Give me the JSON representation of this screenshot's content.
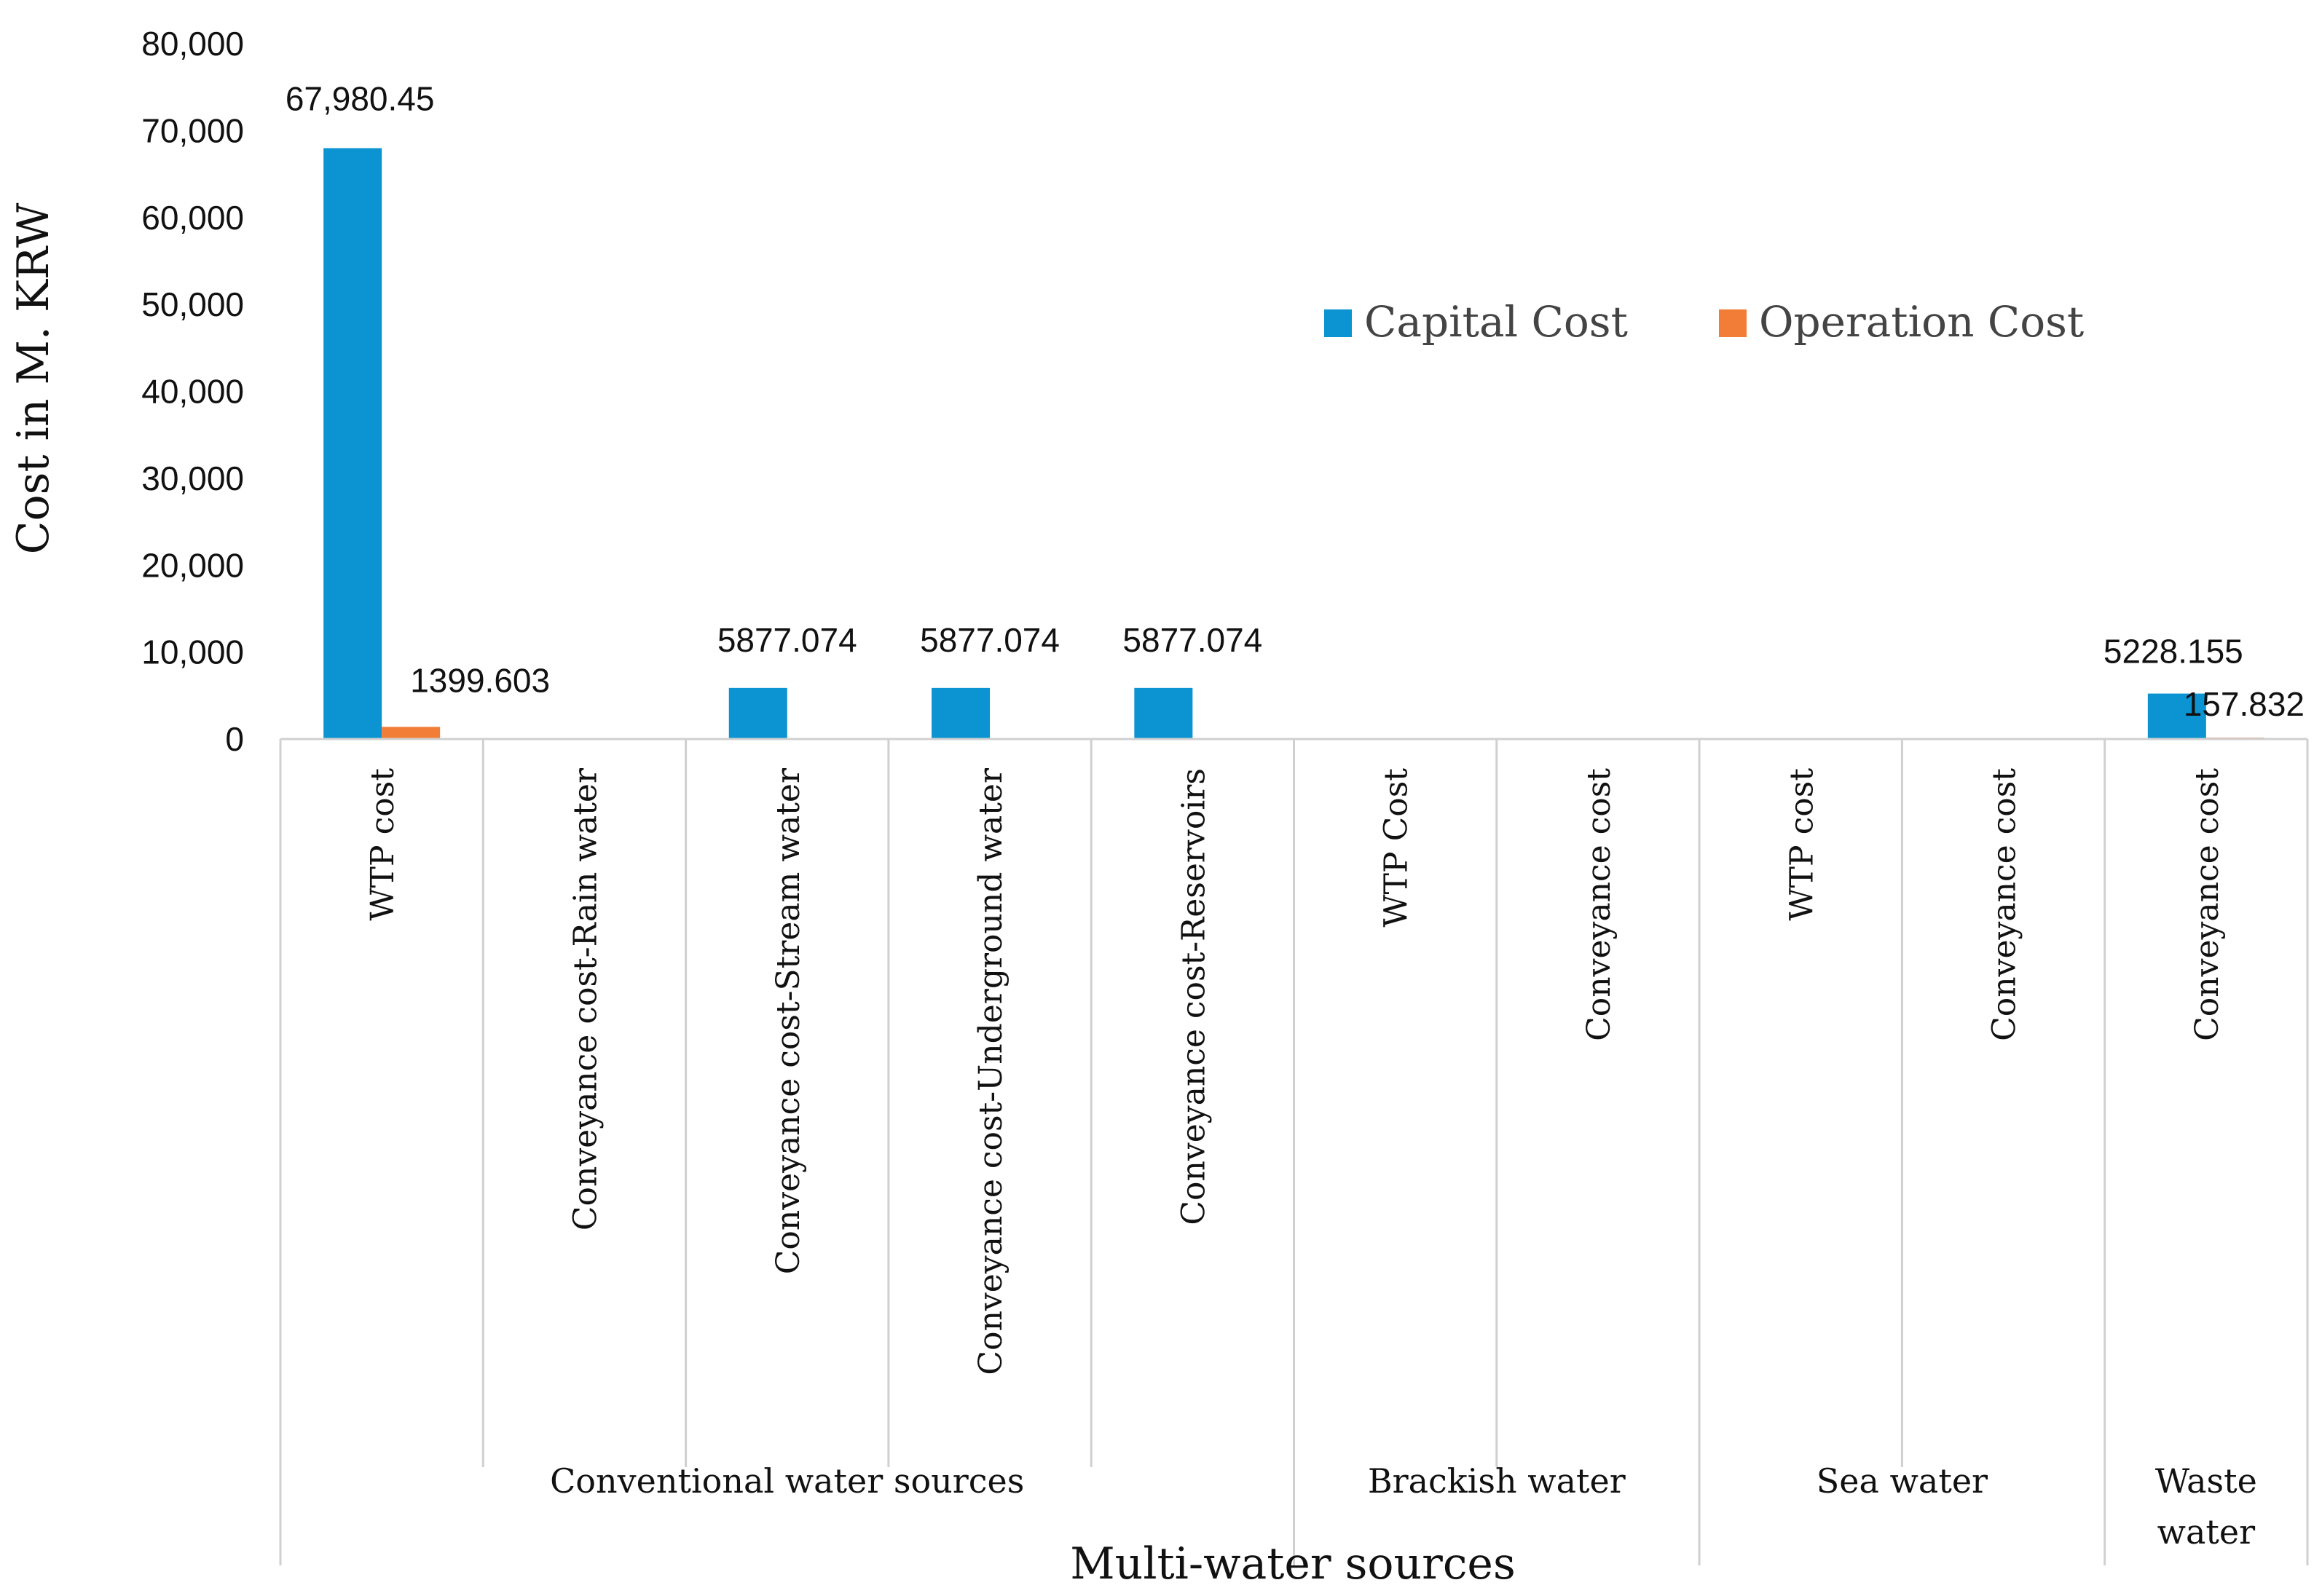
{
  "chart_data": {
    "type": "bar",
    "title": "",
    "xlabel": "Multi-water sources",
    "ylabel": "Cost in M. KRW",
    "ylim": [
      0,
      80000
    ],
    "yticks": [
      0,
      10000,
      20000,
      30000,
      40000,
      50000,
      60000,
      70000,
      80000
    ],
    "ytick_labels": [
      "0",
      "10,000",
      "20,000",
      "30,000",
      "40,000",
      "50,000",
      "60,000",
      "70,000",
      "80,000"
    ],
    "grid": false,
    "legend_position": "top-right",
    "categories": [
      "WTP cost",
      "Conveyance cost-Rain water",
      "Conveyance cost-Stream water",
      "Conveyance cost-Underground water",
      "Conveyance cost-Reservoirs",
      "WTP Cost",
      "Conveyance cost",
      "WTP cost",
      "Conveyance cost",
      "Conveyance cost"
    ],
    "groups": [
      {
        "lines": [
          "Conventional water sources"
        ],
        "start": 0,
        "end": 4
      },
      {
        "lines": [
          "Brackish water"
        ],
        "start": 5,
        "end": 6
      },
      {
        "lines": [
          "Sea water"
        ],
        "start": 7,
        "end": 8
      },
      {
        "lines": [
          "Waste",
          "water"
        ],
        "start": 9,
        "end": 9
      }
    ],
    "series": [
      {
        "name": "Capital Cost",
        "color": "#0b93d2",
        "values": [
          67980.45,
          0,
          5877.074,
          5877.074,
          5877.074,
          0,
          0,
          0,
          0,
          5228.155
        ],
        "data_labels": [
          "67,980.45",
          null,
          "5877.074",
          "5877.074",
          "5877.074",
          null,
          null,
          null,
          null,
          "5228.155"
        ]
      },
      {
        "name": "Operation Cost",
        "color": "#f27d37",
        "values": [
          1399.603,
          0,
          0,
          0,
          0,
          0,
          0,
          0,
          0,
          157.832
        ],
        "data_labels": [
          "1399.603",
          null,
          null,
          null,
          null,
          null,
          null,
          null,
          null,
          "157.832"
        ]
      }
    ]
  }
}
